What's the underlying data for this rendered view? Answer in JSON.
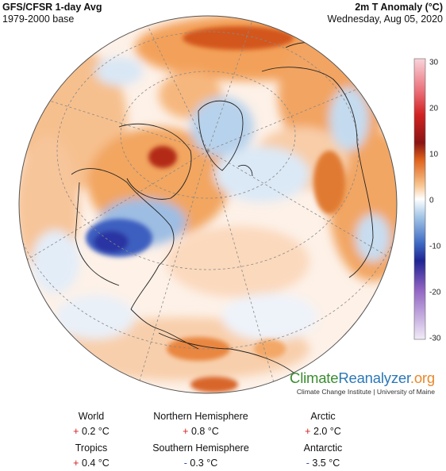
{
  "header": {
    "left_title": "GFS/CFSR 1-day Avg",
    "left_sub": "1979-2000 base",
    "right_title": "2m T Anomaly (°C)",
    "right_sub": "Wednesday, Aug 05, 2020"
  },
  "colorbar": {
    "labels": [
      "30",
      "20",
      "10",
      "0",
      "-10",
      "-20",
      "-30"
    ],
    "colors": [
      "#f7c6cf",
      "#e8616b",
      "#c81e1e",
      "#8a1414",
      "#f07d1e",
      "#f6c38c",
      "#ffffff",
      "#a9cbe8",
      "#4a77c9",
      "#23279e",
      "#8f62c2",
      "#e9dff3"
    ]
  },
  "brand": {
    "name_part1": "Climate",
    "name_part2": "Reanalyzer",
    "name_part3": ".org",
    "subtitle": "Climate Change Institute | University of Maine"
  },
  "stats": [
    {
      "label": "World",
      "sign": "+",
      "value": "0.2 °C"
    },
    {
      "label": "Northern Hemisphere",
      "sign": "+",
      "value": "0.8 °C"
    },
    {
      "label": "Arctic",
      "sign": "+",
      "value": "2.0 °C"
    },
    {
      "label": "Tropics",
      "sign": "+",
      "value": "0.4 °C"
    },
    {
      "label": "Southern Hemisphere",
      "sign": "-",
      "value": "0.3 °C"
    },
    {
      "label": "Antarctic",
      "sign": "-",
      "value": "3.5 °C"
    }
  ]
}
